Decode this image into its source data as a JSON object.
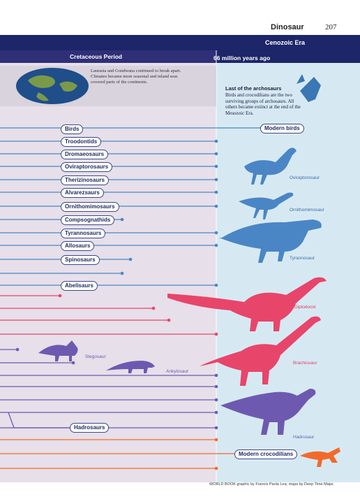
{
  "header": {
    "title": "Dinosaur",
    "page": "207"
  },
  "eras": {
    "cenozoic": "Cenozoic Era",
    "cretaceous": "Cretaceous Period",
    "boundary": "66 million years ago"
  },
  "map_caption": "Laurasia and Gondwana continued to break apart. Climates became more seasonal and inland seas covered parts of the continents.",
  "sidebar": {
    "title": "Last of the archosaurs",
    "body": "Birds and crocodilians are the two surviving groups of archosaurs. All others became extinct at the end of the Mesozoic Era."
  },
  "groups": [
    "Birds",
    "Troodontids",
    "Dromaeosaurs",
    "Oviraptorosaurs",
    "Therizinosaurs",
    "Alvarezsaurs",
    "Ornithomimosaurs",
    "Compsognathids",
    "Tyrannosaurs",
    "Allosaurs",
    "Spinosaurs",
    "Abelisaurs",
    "Hadrosaurs"
  ],
  "survivors": [
    "Modern birds",
    "Modern crocodilians"
  ],
  "silhouettes": [
    "Oviraptorosaur",
    "Ornithomimosaur",
    "Tyrannosaur",
    "Diplodocid",
    "Brachiosaur",
    "Stegosaur",
    "Ankylosaur",
    "Hadrosaur"
  ],
  "credit": "WORLD BOOK graphic by Francis Paola Lea; maps by Deep Time Maps"
}
